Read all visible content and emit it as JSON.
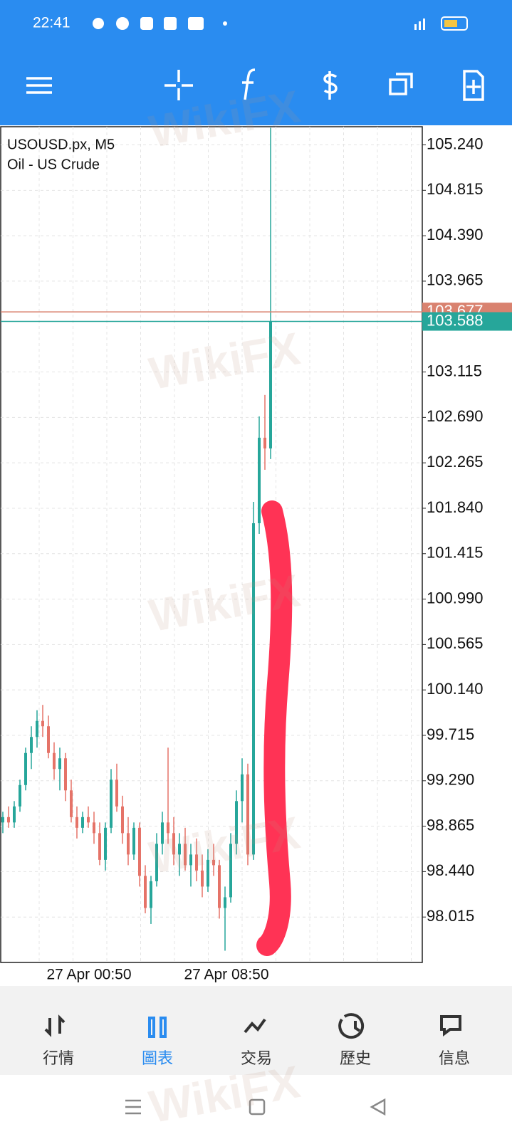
{
  "status_bar": {
    "time": "22:41"
  },
  "chart": {
    "symbol": "USOUSD.px, M5",
    "description": "Oil - US Crude",
    "ylim": [
      97.59,
      105.41
    ],
    "yticks": [
      {
        "value": 105.24,
        "label": "105.240"
      },
      104.815,
      {
        "value": 104.39,
        "label": "104.390"
      },
      103.965,
      103.115,
      {
        "value": 102.69,
        "label": "102.690"
      },
      102.265,
      {
        "value": 101.84,
        "label": "101.840"
      },
      101.415,
      {
        "value": 100.99,
        "label": "100.990"
      },
      100.565,
      {
        "value": 100.14,
        "label": "100.140"
      },
      99.715,
      {
        "value": 99.29,
        "label": "99.290"
      },
      98.865,
      {
        "value": 98.44,
        "label": "98.440"
      },
      98.015
    ],
    "up_color": "#26a69a",
    "down_color": "#e57368",
    "candles": [
      [
        98.9,
        99.0,
        98.8,
        98.95
      ],
      [
        98.95,
        99.05,
        98.85,
        98.9
      ],
      [
        98.9,
        99.1,
        98.85,
        99.05
      ],
      [
        99.05,
        99.3,
        99.0,
        99.25
      ],
      [
        99.25,
        99.6,
        99.2,
        99.55
      ],
      [
        99.55,
        99.8,
        99.4,
        99.7
      ],
      [
        99.7,
        99.95,
        99.6,
        99.85
      ],
      [
        99.85,
        100.0,
        99.7,
        99.8
      ],
      [
        99.8,
        99.9,
        99.5,
        99.55
      ],
      [
        99.55,
        99.65,
        99.3,
        99.4
      ],
      [
        99.4,
        99.6,
        99.2,
        99.5
      ],
      [
        99.5,
        99.55,
        99.1,
        99.2
      ],
      [
        99.2,
        99.3,
        98.9,
        98.95
      ],
      [
        98.95,
        99.05,
        98.75,
        98.85
      ],
      [
        98.85,
        99.0,
        98.8,
        98.95
      ],
      [
        98.95,
        99.05,
        98.85,
        98.9
      ],
      [
        98.9,
        99.0,
        98.7,
        98.8
      ],
      [
        98.8,
        98.9,
        98.5,
        98.55
      ],
      [
        98.55,
        98.9,
        98.45,
        98.85
      ],
      [
        98.85,
        99.4,
        98.8,
        99.3
      ],
      [
        99.3,
        99.45,
        99.0,
        99.05
      ],
      [
        99.05,
        99.15,
        98.7,
        98.8
      ],
      [
        98.8,
        98.95,
        98.5,
        98.6
      ],
      [
        98.6,
        98.9,
        98.55,
        98.85
      ],
      [
        98.85,
        98.9,
        98.3,
        98.4
      ],
      [
        98.4,
        98.5,
        98.05,
        98.1
      ],
      [
        98.1,
        98.4,
        97.95,
        98.35
      ],
      [
        98.35,
        98.8,
        98.3,
        98.7
      ],
      [
        98.7,
        99.0,
        98.6,
        98.9
      ],
      [
        98.9,
        99.6,
        98.7,
        98.8
      ],
      [
        98.8,
        98.95,
        98.5,
        98.6
      ],
      [
        98.6,
        98.8,
        98.4,
        98.7
      ],
      [
        98.7,
        98.85,
        98.45,
        98.5
      ],
      [
        98.5,
        98.7,
        98.3,
        98.6
      ],
      [
        98.6,
        98.75,
        98.35,
        98.45
      ],
      [
        98.45,
        98.6,
        98.2,
        98.3
      ],
      [
        98.3,
        98.65,
        98.25,
        98.55
      ],
      [
        98.55,
        98.7,
        98.4,
        98.5
      ],
      [
        98.5,
        98.55,
        98.0,
        98.1
      ],
      [
        98.1,
        98.3,
        97.7,
        98.2
      ],
      [
        98.2,
        98.8,
        98.15,
        98.7
      ],
      [
        98.7,
        99.2,
        98.6,
        99.1
      ],
      [
        99.1,
        99.5,
        98.9,
        99.35
      ],
      [
        99.35,
        99.45,
        98.5,
        98.6
      ],
      [
        98.6,
        101.9,
        98.55,
        101.7
      ],
      [
        101.7,
        102.7,
        101.6,
        102.5
      ],
      [
        102.5,
        102.9,
        102.2,
        102.4
      ],
      [
        102.4,
        105.4,
        102.3,
        103.588
      ]
    ],
    "ask_line": {
      "value": 103.677,
      "color": "#d9826f"
    },
    "last_line": {
      "value": 103.588,
      "color": "#26a69a"
    },
    "xlabels": [
      "27 Apr 00:50",
      "27 Apr 08:50"
    ]
  },
  "nav": {
    "tabs": [
      "行情",
      "圖表",
      "交易",
      "歷史",
      "信息"
    ],
    "active": 1
  },
  "watermark": "WikiFX"
}
